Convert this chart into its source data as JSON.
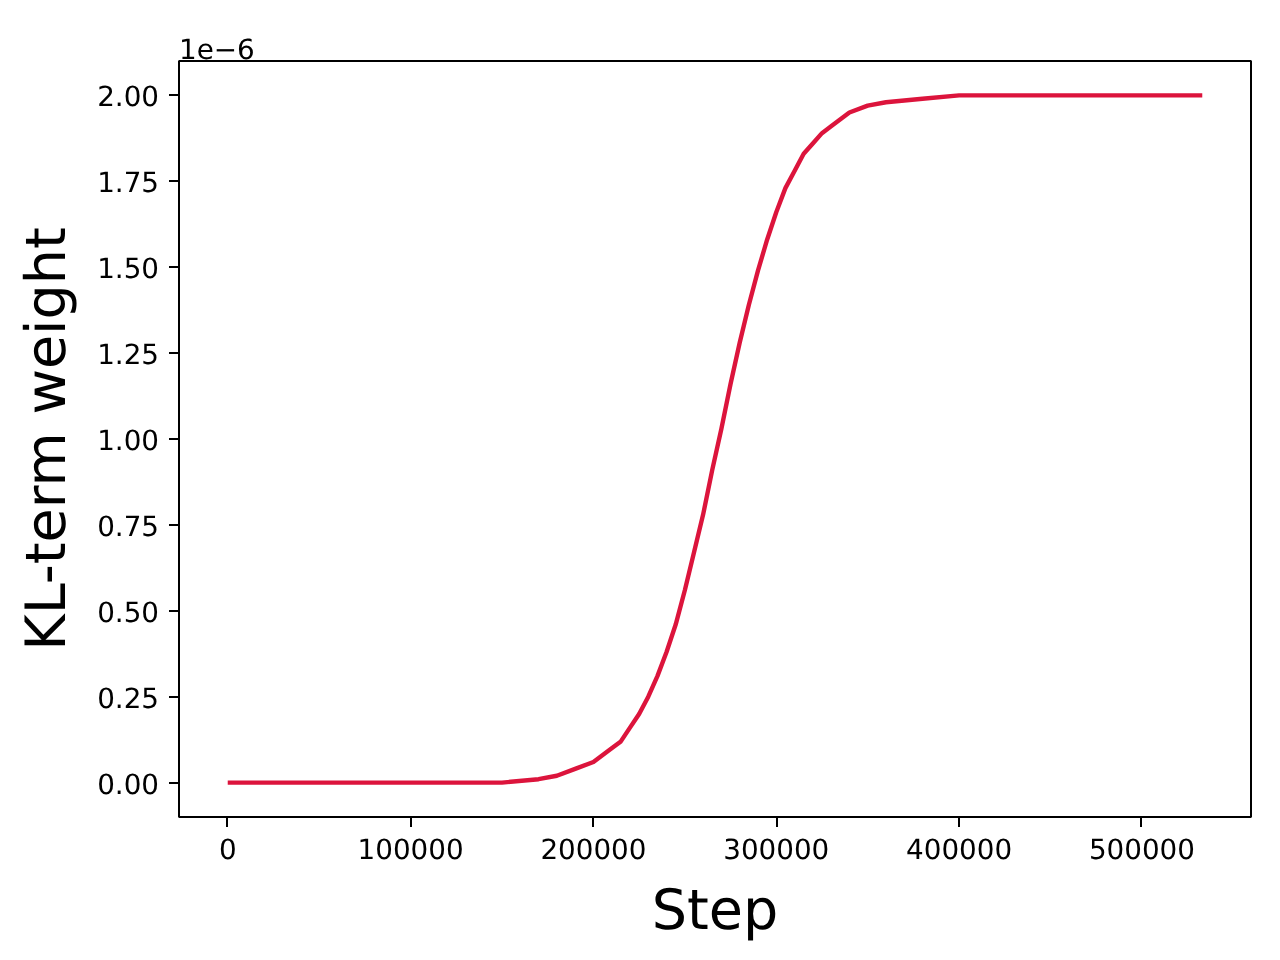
{
  "chart_data": {
    "type": "line",
    "xlabel": "Step",
    "ylabel": "KL-term weight",
    "annotations": [
      "1e−6"
    ],
    "x": [
      0,
      50000,
      100000,
      130000,
      150000,
      170000,
      180000,
      190000,
      200000,
      210000,
      215000,
      220000,
      225000,
      230000,
      235000,
      240000,
      245000,
      250000,
      255000,
      260000,
      265000,
      270000,
      275000,
      280000,
      285000,
      290000,
      295000,
      300000,
      305000,
      310000,
      315000,
      320000,
      325000,
      330000,
      340000,
      350000,
      360000,
      380000,
      400000,
      450000,
      500000,
      533000
    ],
    "series": [
      {
        "color": "#dc143c",
        "values": [
          0,
          0,
          0,
          0,
          0,
          0.01,
          0.02,
          0.04,
          0.06,
          0.1,
          0.12,
          0.16,
          0.2,
          0.25,
          0.31,
          0.38,
          0.46,
          0.56,
          0.67,
          0.78,
          0.91,
          1.03,
          1.16,
          1.28,
          1.39,
          1.49,
          1.58,
          1.66,
          1.73,
          1.78,
          1.83,
          1.86,
          1.89,
          1.91,
          1.95,
          1.97,
          1.98,
          1.99,
          2.0,
          2.0,
          2.0,
          2.0
        ]
      }
    ],
    "xlim": [
      -26650,
      559650
    ],
    "ylim": [
      -0.1,
      2.1
    ],
    "xticks": [
      0,
      100000,
      200000,
      300000,
      400000,
      500000
    ],
    "yticks": [
      {
        "value": 0,
        "label": "0.00"
      },
      {
        "value": 0.25,
        "label": "0.25"
      },
      {
        "value": 0.5,
        "label": "0.50"
      },
      {
        "value": 0.75,
        "label": "0.75"
      },
      {
        "value": 1,
        "label": "1.00"
      },
      {
        "value": 1.25,
        "label": "1.25"
      },
      {
        "value": 1.5,
        "label": "1.50"
      },
      {
        "value": 1.75,
        "label": "1.75"
      },
      {
        "value": 2,
        "label": "2.00"
      }
    ]
  }
}
